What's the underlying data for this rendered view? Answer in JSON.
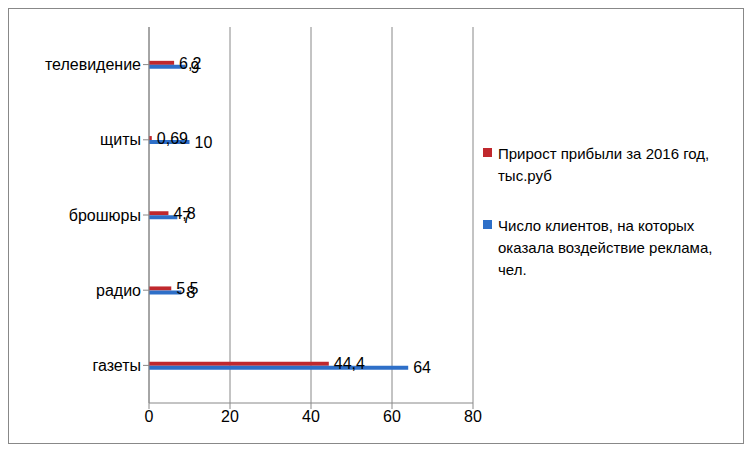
{
  "chart_data": {
    "type": "bar",
    "orientation": "horizontal",
    "categories": [
      "телевидение",
      "щиты",
      "брошюры",
      "радио",
      "газеты"
    ],
    "series": [
      {
        "name": "Прирост прибыли за 2016 год,  тыс.руб",
        "color": "#c0282d",
        "values": [
          6.2,
          0.69,
          4.8,
          5.5,
          44.4
        ],
        "value_labels": [
          "6,2",
          "0,69",
          "4,8",
          "5,5",
          "44,4"
        ]
      },
      {
        "name": "Число клиентов, на которых оказала воздействие реклама, чел.",
        "color": "#2e6fc8",
        "values": [
          9,
          10,
          7,
          8,
          64
        ]
      }
    ],
    "xlim": [
      0,
      80
    ],
    "xticks": [
      0,
      20,
      40,
      60,
      80
    ],
    "grid": true,
    "legend": "right",
    "data_labels": true
  }
}
